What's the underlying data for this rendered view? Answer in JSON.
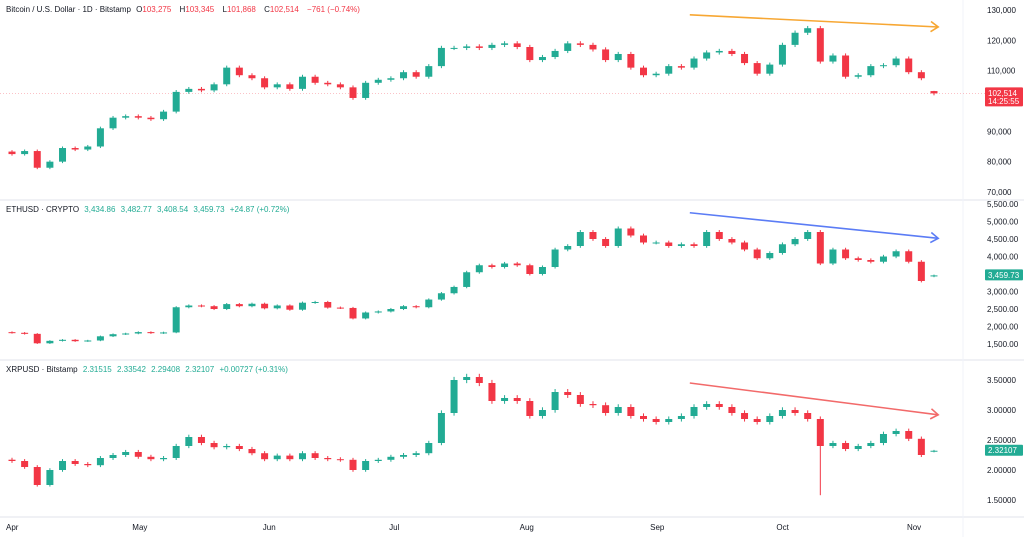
{
  "colors": {
    "up": "#22ab94",
    "down": "#f23645",
    "btc_trend": "#f7a733",
    "eth_trend": "#5b7cf5",
    "xrp_trend": "#f26a6a"
  },
  "headers": {
    "btc": {
      "title": "Bitcoin / U.S. Dollar · 1D · Bitstamp",
      "o_label": "O",
      "o": "103,275",
      "h_label": "H",
      "h": "103,345",
      "l_label": "L",
      "l": "101,868",
      "c_label": "C",
      "c": "102,514",
      "change": "−761 (−0.74%)"
    },
    "eth": {
      "title": "ETHUSD · CRYPTO",
      "o": "3,434.86",
      "h": "3,482.77",
      "l": "3,408.54",
      "c": "3,459.73",
      "change": "+24.87 (+0.72%)"
    },
    "xrp": {
      "title": "XRPUSD · Bitstamp",
      "o": "2.31515",
      "h": "2.33542",
      "l": "2.29408",
      "c": "2.32107",
      "change": "+0.00727 (+0.31%)"
    }
  },
  "chart_data": [
    {
      "type": "candlestick",
      "key": "btc",
      "title": "Bitcoin / U.S. Dollar · 1D · Bitstamp",
      "ylim": [
        70000,
        130000
      ],
      "y_ticks": [
        130000,
        120000,
        110000,
        90000,
        80000,
        70000
      ],
      "y_tick_labels": [
        "130,000",
        "120,000",
        "110,000",
        "90,000",
        "80,000",
        "70,000"
      ],
      "last": {
        "open": 103275,
        "high": 103345,
        "low": 101868,
        "close": 102514,
        "label": "102,514",
        "countdown": "14:25:55",
        "color": "#f23645"
      },
      "closes": [
        82500,
        83500,
        78000,
        80000,
        84500,
        84000,
        85000,
        91000,
        94500,
        95000,
        94500,
        94000,
        96500,
        103000,
        104000,
        103500,
        105500,
        111000,
        108500,
        107500,
        104500,
        105500,
        104000,
        108000,
        106000,
        105500,
        104500,
        101000,
        106000,
        107000,
        107500,
        109500,
        108000,
        111500,
        117500,
        117500,
        118000,
        117500,
        118500,
        119000,
        117800,
        113500,
        114500,
        116500,
        119000,
        118500,
        117000,
        113500,
        115500,
        111000,
        108500,
        109000,
        111500,
        111000,
        114000,
        116000,
        116500,
        115500,
        112500,
        109000,
        112000,
        118500,
        122500,
        124000,
        113000,
        115000,
        108000,
        108500,
        111500,
        111800,
        114000,
        109500,
        107500,
        102514
      ],
      "trendline": {
        "from": {
          "date": "Sep 9",
          "value": 128400
        },
        "to": {
          "date": "Nov 7",
          "value": 124400
        },
        "arrow": true
      }
    },
    {
      "type": "candlestick",
      "key": "eth",
      "title": "ETHUSD · CRYPTO",
      "ylim": [
        1500,
        5500
      ],
      "y_ticks": [
        5500,
        5000,
        4500,
        4000,
        3000,
        2500,
        2000,
        1500
      ],
      "y_tick_labels": [
        "5,500.00",
        "5,000.00",
        "4,500.00",
        "4,000.00",
        "3,000.00",
        "2,500.00",
        "2,000.00",
        "1,500.00"
      ],
      "last": {
        "open": 3434.86,
        "high": 3482.77,
        "low": 3408.54,
        "close": 3459.73,
        "label": "3,459.73",
        "color": "#22ab94"
      },
      "closes": [
        1820,
        1790,
        1520,
        1590,
        1620,
        1580,
        1600,
        1720,
        1780,
        1800,
        1840,
        1810,
        1830,
        2550,
        2600,
        2580,
        2500,
        2640,
        2580,
        2650,
        2520,
        2600,
        2480,
        2680,
        2700,
        2540,
        2530,
        2230,
        2400,
        2430,
        2500,
        2580,
        2550,
        2770,
        2950,
        3130,
        3550,
        3750,
        3700,
        3800,
        3750,
        3500,
        3700,
        4200,
        4300,
        4700,
        4500,
        4300,
        4800,
        4600,
        4400,
        4400,
        4300,
        4350,
        4300,
        4700,
        4500,
        4400,
        4200,
        3950,
        4100,
        4350,
        4500,
        4700,
        3800,
        4200,
        3950,
        3900,
        3850,
        4000,
        4150,
        3850,
        3300,
        3459.73
      ],
      "trendline": {
        "from": {
          "date": "Sep 9",
          "value": 5250
        },
        "to": {
          "date": "Nov 7",
          "value": 4520
        },
        "arrow": true
      }
    },
    {
      "type": "candlestick",
      "key": "xrp",
      "title": "XRPUSD · Bitstamp",
      "ylim": [
        1.5,
        3.5
      ],
      "y_ticks": [
        3.5,
        3.0,
        2.5,
        2.0,
        1.5
      ],
      "y_tick_labels": [
        "3.50000",
        "3.00000",
        "2.50000",
        "2.00000",
        "1.50000"
      ],
      "last": {
        "open": 2.31515,
        "high": 2.33542,
        "low": 2.29408,
        "close": 2.32107,
        "label": "2.32107",
        "color": "#22ab94"
      },
      "closes": [
        2.15,
        2.05,
        1.75,
        2.0,
        2.15,
        2.1,
        2.08,
        2.2,
        2.25,
        2.3,
        2.22,
        2.18,
        2.2,
        2.4,
        2.55,
        2.45,
        2.38,
        2.4,
        2.35,
        2.28,
        2.18,
        2.24,
        2.18,
        2.28,
        2.2,
        2.18,
        2.17,
        2.0,
        2.15,
        2.17,
        2.22,
        2.25,
        2.28,
        2.45,
        2.95,
        3.5,
        3.55,
        3.45,
        3.15,
        3.2,
        3.15,
        2.9,
        3.0,
        3.3,
        3.25,
        3.1,
        3.08,
        2.95,
        3.05,
        2.9,
        2.85,
        2.8,
        2.85,
        2.9,
        3.05,
        3.1,
        3.05,
        2.95,
        2.85,
        2.8,
        2.9,
        3.0,
        2.95,
        2.85,
        2.4,
        2.45,
        2.35,
        2.4,
        2.45,
        2.6,
        2.65,
        2.52,
        2.25,
        2.32107
      ],
      "notable_wicks": [
        {
          "date": "Oct 10",
          "low": 1.58
        }
      ],
      "trendline": {
        "from": {
          "date": "Sep 9",
          "value": 3.45
        },
        "to": {
          "date": "Nov 7",
          "value": 2.92
        },
        "arrow": true
      }
    }
  ],
  "dates": [
    "Apr 1",
    "Apr 4",
    "Apr 7",
    "Apr 10",
    "Apr 13",
    "Apr 16",
    "Apr 19",
    "Apr 22",
    "Apr 25",
    "Apr 28",
    "May 1",
    "May 4",
    "May 7",
    "May 10",
    "May 13",
    "May 16",
    "May 19",
    "May 22",
    "May 25",
    "May 28",
    "May 31",
    "Jun 3",
    "Jun 6",
    "Jun 9",
    "Jun 12",
    "Jun 15",
    "Jun 18",
    "Jun 21",
    "Jun 24",
    "Jun 27",
    "Jun 30",
    "Jul 3",
    "Jul 6",
    "Jul 9",
    "Jul 12",
    "Jul 15",
    "Jul 18",
    "Jul 21",
    "Jul 24",
    "Jul 27",
    "Jul 30",
    "Aug 2",
    "Aug 5",
    "Aug 8",
    "Aug 11",
    "Aug 14",
    "Aug 17",
    "Aug 20",
    "Aug 23",
    "Aug 26",
    "Aug 29",
    "Sep 1",
    "Sep 4",
    "Sep 7",
    "Sep 10",
    "Sep 13",
    "Sep 16",
    "Sep 19",
    "Sep 22",
    "Sep 25",
    "Sep 28",
    "Oct 1",
    "Oct 4",
    "Oct 7",
    "Oct 10",
    "Oct 13",
    "Oct 16",
    "Oct 19",
    "Oct 22",
    "Oct 25",
    "Oct 28",
    "Oct 31",
    "Nov 3",
    "Nov 6"
  ],
  "x_tick_labels": [
    "Apr",
    "May",
    "Jun",
    "Jul",
    "Aug",
    "Sep",
    "Oct",
    "Nov"
  ]
}
